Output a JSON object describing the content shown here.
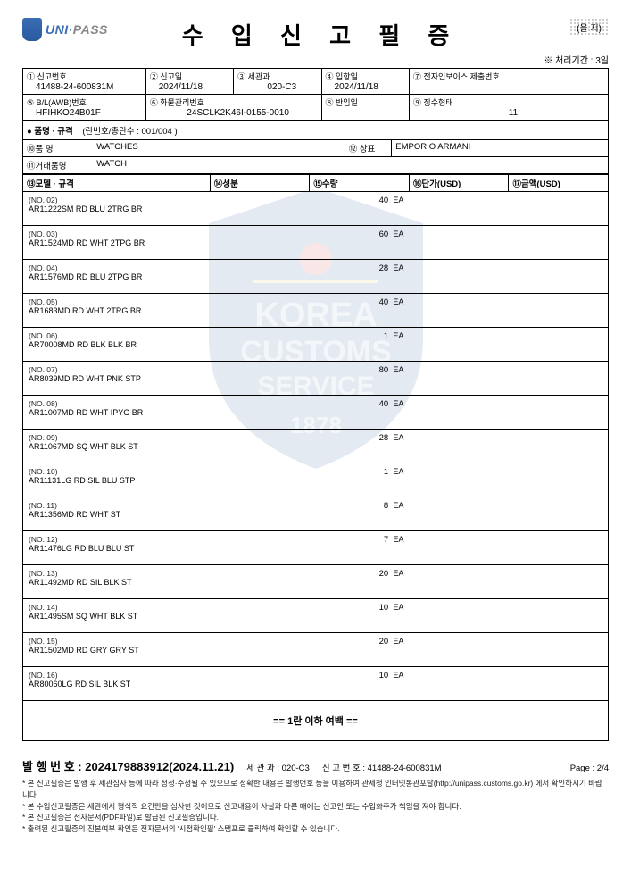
{
  "stamp_text": "(을 지)",
  "proc_time": "※ 처리기간 : 3일",
  "logo": {
    "uni": "UNI·",
    "pass": "PASS"
  },
  "title": "수 입 신 고 필 증",
  "header": {
    "f1": {
      "label": "① 신고번호",
      "value": "41488-24-600831M"
    },
    "f2": {
      "label": "② 신고일",
      "value": "2024/11/18"
    },
    "f3": {
      "label": "③ 세관과",
      "value": "020-C3"
    },
    "f4": {
      "label": "④ 입항일",
      "value": "2024/11/18"
    },
    "f7": {
      "label": "⑦ 전자인보이스 제출번호",
      "value": ""
    },
    "f5": {
      "label": "⑤ B/L(AWB)번호",
      "value": "HFIHKO24B01F"
    },
    "f6": {
      "label": "⑥ 화물관리번호",
      "value": "24SCLK2K46I-0155-0010"
    },
    "f8": {
      "label": "⑧ 반입일",
      "value": ""
    },
    "f9": {
      "label": "⑨ 징수형태",
      "value": "11"
    }
  },
  "spec_header": {
    "label": "● 품명 · 규격",
    "sub": "(란번호/총란수 :   001/004  )"
  },
  "meta": {
    "name_label": "⑩품 명",
    "name_value": "WATCHES",
    "trade_label": "⑪거래품명",
    "trade_value": "WATCH",
    "brand_label": "⑫ 상표",
    "brand_value": "EMPORIO ARMANI"
  },
  "cols": {
    "c1": "⑬모델 · 규격",
    "c2": "⑭성분",
    "c3": "⑮수량",
    "c4": "⑯단가(USD)",
    "c5": "⑰금액(USD)"
  },
  "items": [
    {
      "no": "(NO. 02)",
      "code": "AR11222SM RD BLU 2TRG BR",
      "qty": "40",
      "unit": "EA"
    },
    {
      "no": "(NO. 03)",
      "code": "AR11524MD RD WHT 2TPG BR",
      "qty": "60",
      "unit": "EA"
    },
    {
      "no": "(NO. 04)",
      "code": "AR11576MD RD BLU 2TPG BR",
      "qty": "28",
      "unit": "EA"
    },
    {
      "no": "(NO. 05)",
      "code": "AR1683MD RD WHT 2TRG BR",
      "qty": "40",
      "unit": "EA"
    },
    {
      "no": "(NO. 06)",
      "code": "AR70008MD RD BLK BLK BR",
      "qty": "1",
      "unit": "EA"
    },
    {
      "no": "(NO. 07)",
      "code": "AR8039MD RD WHT PNK STP",
      "qty": "80",
      "unit": "EA"
    },
    {
      "no": "(NO. 08)",
      "code": "AR11007MD RD WHT IPYG BR",
      "qty": "40",
      "unit": "EA"
    },
    {
      "no": "(NO. 09)",
      "code": "AR11067MD SQ WHT BLK ST",
      "qty": "28",
      "unit": "EA"
    },
    {
      "no": "(NO. 10)",
      "code": "AR11131LG RD SIL BLU STP",
      "qty": "1",
      "unit": "EA"
    },
    {
      "no": "(NO. 11)",
      "code": "AR11356MD RD WHT ST",
      "qty": "8",
      "unit": "EA"
    },
    {
      "no": "(NO. 12)",
      "code": "AR11476LG RD BLU BLU ST",
      "qty": "7",
      "unit": "EA"
    },
    {
      "no": "(NO. 13)",
      "code": "AR11492MD RD SIL BLK ST",
      "qty": "20",
      "unit": "EA"
    },
    {
      "no": "(NO. 14)",
      "code": "AR11495SM SQ WHT BLK ST",
      "qty": "10",
      "unit": "EA"
    },
    {
      "no": "(NO. 15)",
      "code": "AR11502MD RD GRY GRY ST",
      "qty": "20",
      "unit": "EA"
    },
    {
      "no": "(NO. 16)",
      "code": "AR80060LG RD SIL BLK ST",
      "qty": "10",
      "unit": "EA"
    }
  ],
  "blank_margin": "==  1란 이하 여백  ==",
  "footer": {
    "issue_label": "발 행 번 호 :",
    "issue_no": "2024179883912(2024.11.21)",
    "meta1": "세 관 과 :  020-C3",
    "meta2": "신 고 번 호 :  41488-24-600831M",
    "page": "Page :  2/4",
    "notes": [
      "본 신고필증은 발행 후 세관심사 등에 따라 정정·수정될 수 있으므로 정확한 내용은 발행번호 등을 이용하여 관세청 인터넷통관포탈(http://unipass.customs.go.kr) 에서 확인하시기 바랍니다.",
      "본 수입신고필증은 세관에서 형식적 요건만을 심사한 것이므로 신고내용이 사실과 다른 때에는 신고인 또는 수입화주가 책임을 져야 합니다.",
      "본 신고필증은 전자문서(PDF파일)로 발급된 신고필증입니다.",
      "출력된 신고필증의 진본여부 확인은 전자문서의 '시점확인필' 스탬프로 클릭하여 확인할 수 있습니다."
    ]
  },
  "colors": {
    "border": "#000000",
    "watermark_blue": "#2d5a9e",
    "watermark_text": "#6a8bb8"
  }
}
